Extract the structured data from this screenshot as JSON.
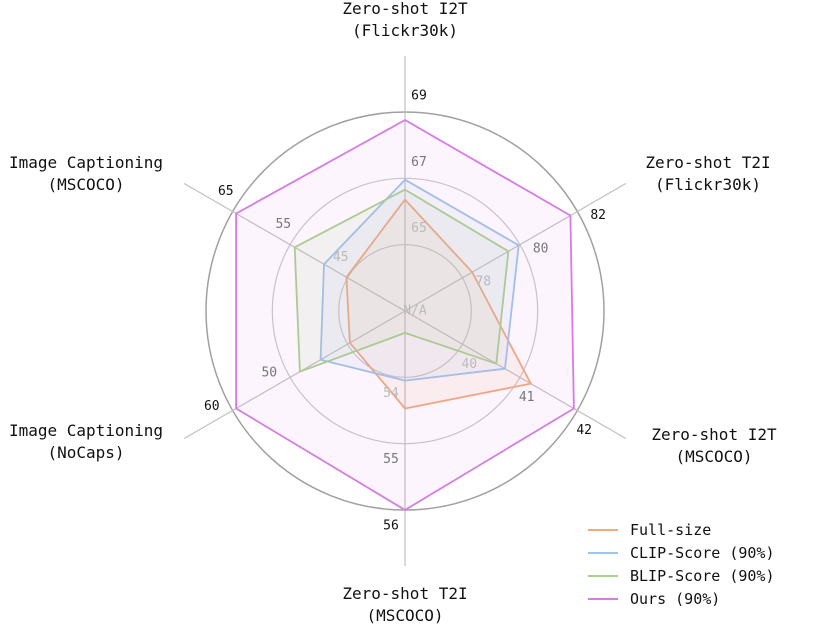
{
  "chart_data": {
    "type": "radar",
    "axes": [
      {
        "label_lines": [
          "Zero-shot I2T",
          "(Flickr30k)"
        ]
      },
      {
        "label_lines": [
          "Zero-shot T2I",
          "(Flickr30k)"
        ]
      },
      {
        "label_lines": [
          "Zero-shot I2T",
          "(MSCOCO)"
        ]
      },
      {
        "label_lines": [
          "Zero-shot T2I",
          "(MSCOCO)"
        ]
      },
      {
        "label_lines": [
          "Image Captioning",
          "(NoCaps)"
        ]
      },
      {
        "label_lines": [
          "Image Captioning",
          "(MSCOCO)"
        ]
      }
    ],
    "ring_tick_labels": [
      [
        "65",
        "67",
        "69"
      ],
      [
        "78",
        "80",
        "82"
      ],
      [
        "40",
        "41",
        "42"
      ],
      [
        "54",
        "55",
        "56"
      ],
      [
        "50",
        "60"
      ],
      [
        "45",
        "55",
        "65"
      ]
    ],
    "center_label": "N/A",
    "series": [
      {
        "name": "Full-size",
        "color": "#f4a97a",
        "fill": "rgba(244,169,122,0.10)",
        "values": [
          0.56,
          0.39,
          0.73,
          0.49,
          0.32,
          0.34
        ]
      },
      {
        "name": "CLIP-Score (90%)",
        "color": "#9ec4ea",
        "fill": "rgba(158,196,234,0.10)",
        "values": [
          0.66,
          0.66,
          0.58,
          0.35,
          0.49,
          0.47
        ]
      },
      {
        "name": "BLIP-Score (90%)",
        "color": "#a9d18e",
        "fill": "rgba(169,209,142,0.10)",
        "values": [
          0.61,
          0.6,
          0.53,
          0.11,
          0.61,
          0.64
        ]
      },
      {
        "name": "Ours (90%)",
        "color": "#d67ce4",
        "fill": "rgba(214,124,228,0.08)",
        "values": [
          0.96,
          0.96,
          0.98,
          1.0,
          0.98,
          0.98
        ]
      }
    ],
    "legend_position": "lower-right",
    "grid": true
  }
}
